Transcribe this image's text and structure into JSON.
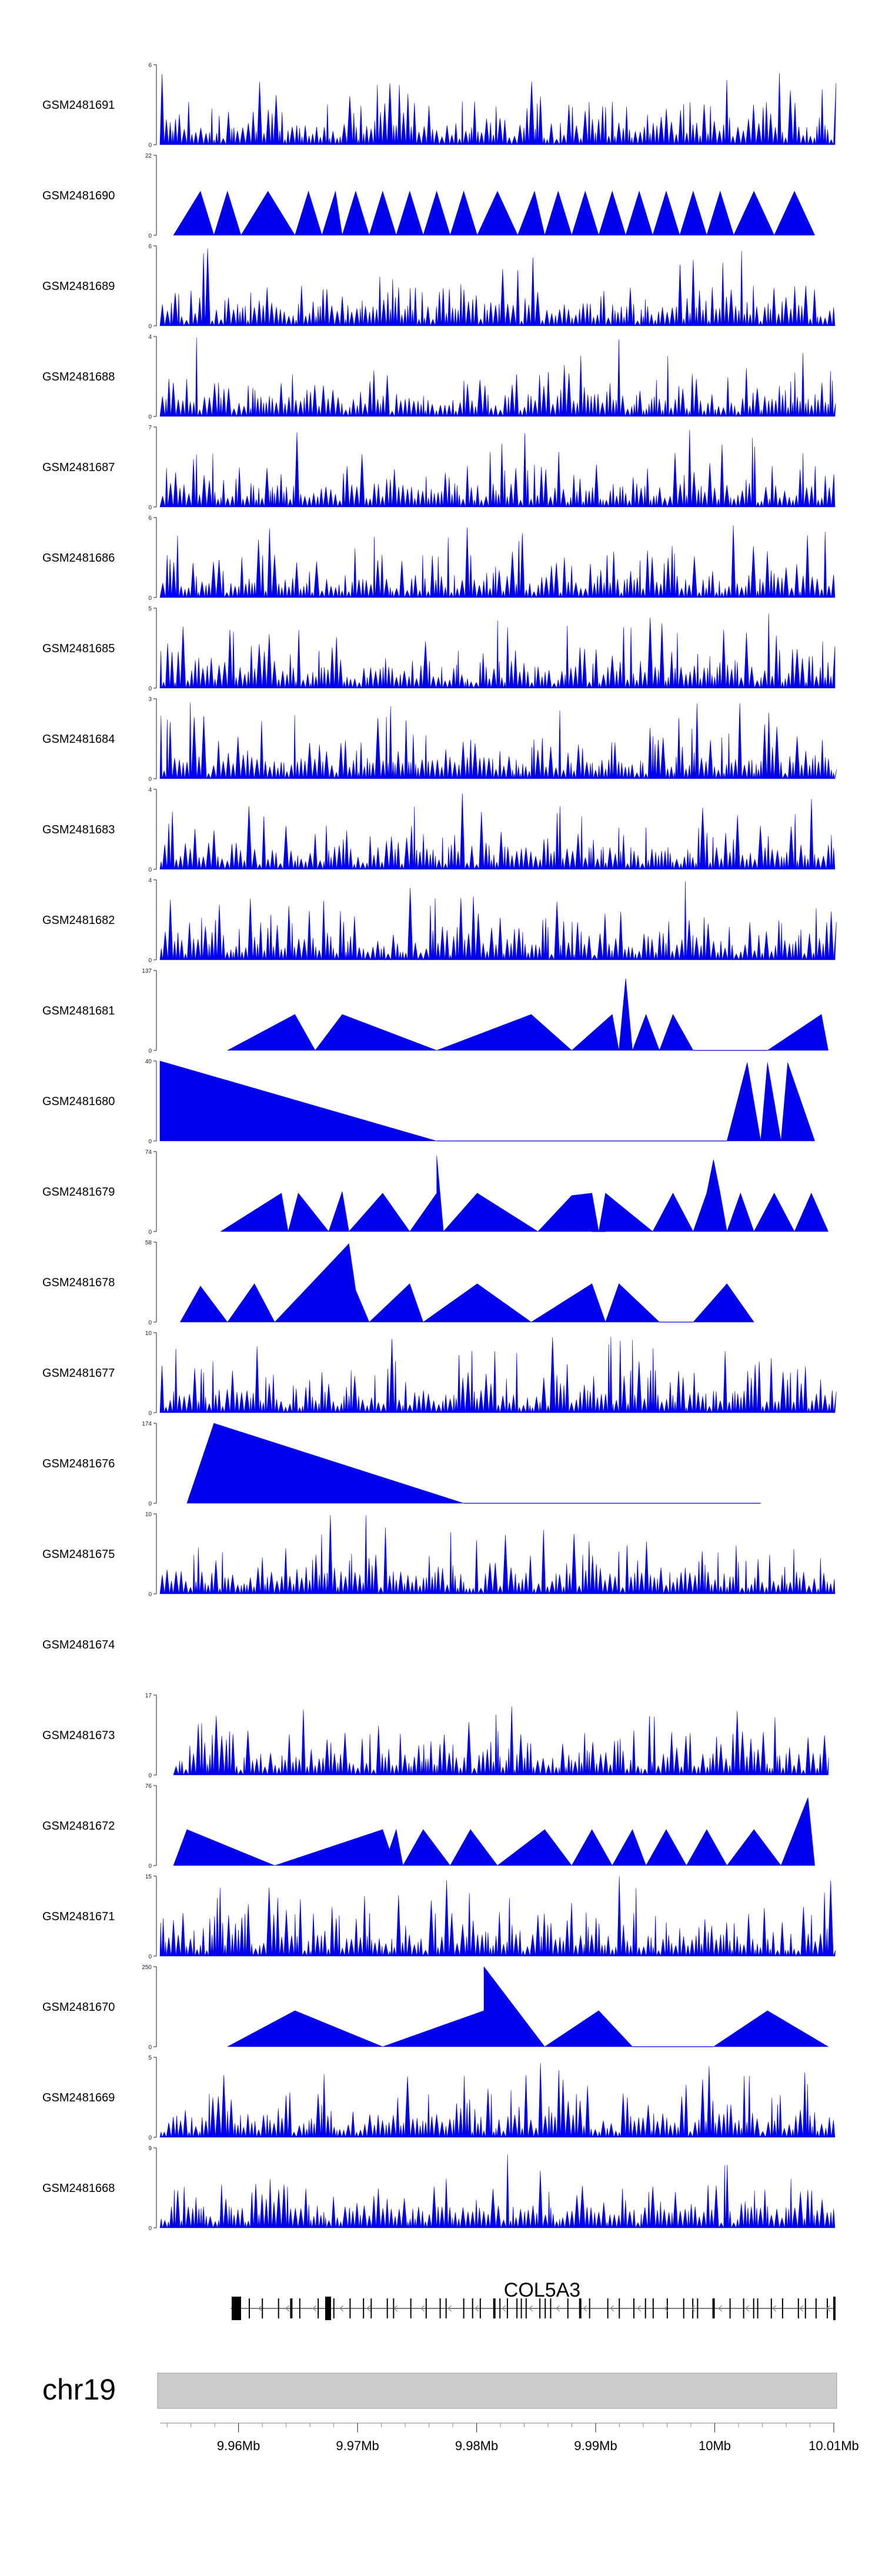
{
  "chart_data": {
    "type": "area",
    "tracks": [
      {
        "name": "GSM2481691",
        "ymax": 6
      },
      {
        "name": "GSM2481690",
        "ymax": 22
      },
      {
        "name": "GSM2481689",
        "ymax": 6
      },
      {
        "name": "GSM2481688",
        "ymax": 4
      },
      {
        "name": "GSM2481687",
        "ymax": 7
      },
      {
        "name": "GSM2481686",
        "ymax": 6
      },
      {
        "name": "GSM2481685",
        "ymax": 5
      },
      {
        "name": "GSM2481684",
        "ymax": 3
      },
      {
        "name": "GSM2481683",
        "ymax": 4
      },
      {
        "name": "GSM2481682",
        "ymax": 4
      },
      {
        "name": "GSM2481681",
        "ymax": 137
      },
      {
        "name": "GSM2481680",
        "ymax": 40
      },
      {
        "name": "GSM2481679",
        "ymax": 74
      },
      {
        "name": "GSM2481678",
        "ymax": 58
      },
      {
        "name": "GSM2481677",
        "ymax": 10
      },
      {
        "name": "GSM2481676",
        "ymax": 174
      },
      {
        "name": "GSM2481675",
        "ymax": 10
      },
      {
        "name": "GSM2481674",
        "ymax": null
      },
      {
        "name": "GSM2481673",
        "ymax": 17
      },
      {
        "name": "GSM2481672",
        "ymax": 76
      },
      {
        "name": "GSM2481671",
        "ymax": 15
      },
      {
        "name": "GSM2481670",
        "ymax": 250
      },
      {
        "name": "GSM2481669",
        "ymax": 5
      },
      {
        "name": "GSM2481668",
        "ymax": 9
      }
    ],
    "ymin_label": "0",
    "gene": "COL5A3",
    "chromosome": "chr19",
    "x_ticks": [
      {
        "value": 9.96,
        "label": "9.96Mb"
      },
      {
        "value": 9.97,
        "label": "9.97Mb"
      },
      {
        "value": 9.98,
        "label": "9.98Mb"
      },
      {
        "value": 9.99,
        "label": "9.99Mb"
      },
      {
        "value": 10.0,
        "label": "10Mb"
      },
      {
        "value": 10.01,
        "label": "10.01Mb"
      }
    ],
    "xlim": [
      9.9534,
      10.0101
    ],
    "colors": {
      "signal": "#0000ee",
      "gene": "#000000",
      "ideogram": "#cccccc"
    }
  }
}
